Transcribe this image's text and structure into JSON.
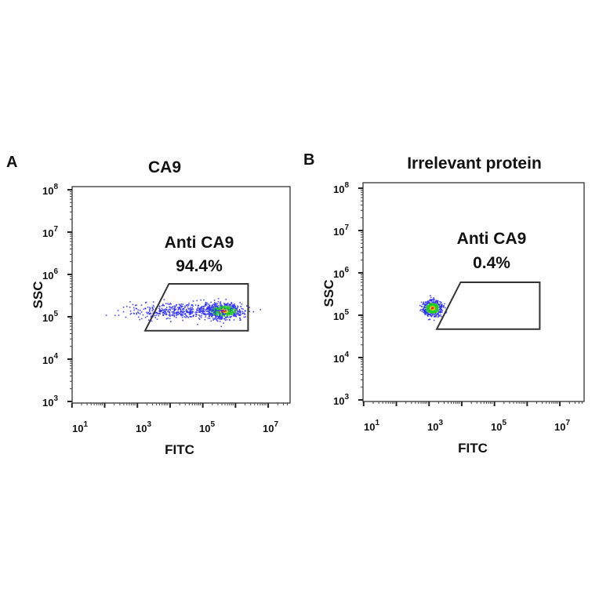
{
  "chart_data": [
    {
      "type": "scatter",
      "panel_label": "A",
      "title": "CA9",
      "xlabel": "FITC",
      "ylabel": "SSC",
      "x_scale": "log",
      "y_scale": "log",
      "xlim": [
        1,
        10000000
      ],
      "ylim": [
        1000,
        100000000
      ],
      "x_ticks": [
        {
          "base": "10",
          "exp": "1",
          "value": 10
        },
        {
          "base": "10",
          "exp": "3",
          "value": 1000
        },
        {
          "base": "10",
          "exp": "5",
          "value": 100000
        },
        {
          "base": "10",
          "exp": "7",
          "value": 10000000
        }
      ],
      "y_ticks": [
        {
          "base": "10",
          "exp": "3",
          "value": 1000
        },
        {
          "base": "10",
          "exp": "4",
          "value": 10000
        },
        {
          "base": "10",
          "exp": "5",
          "value": 100000
        },
        {
          "base": "10",
          "exp": "6",
          "value": 1000000
        },
        {
          "base": "10",
          "exp": "7",
          "value": 10000000
        },
        {
          "base": "10",
          "exp": "8",
          "value": 100000000
        }
      ],
      "gate": {
        "name": "Anti CA9",
        "percent": "94.4%",
        "vertices": [
          [
            800,
            47000
          ],
          [
            4500,
            600000
          ],
          [
            1400000,
            600000
          ],
          [
            1400000,
            47000
          ]
        ]
      },
      "populations": [
        {
          "x_log_center": 5.35,
          "x_log_sd": 0.3,
          "y_log_center": 5.15,
          "y_log_sd": 0.09,
          "events": 700
        },
        {
          "x_log_center": 4.0,
          "x_log_sd": 0.8,
          "y_log_center": 5.15,
          "y_log_sd": 0.09,
          "events": 450
        }
      ],
      "grid": false
    },
    {
      "type": "scatter",
      "panel_label": "B",
      "title": "Irrelevant protein",
      "xlabel": "FITC",
      "ylabel": "SSC",
      "x_scale": "log",
      "y_scale": "log",
      "xlim": [
        1,
        10000000
      ],
      "ylim": [
        1000,
        100000000
      ],
      "x_ticks": [
        {
          "base": "10",
          "exp": "1",
          "value": 10
        },
        {
          "base": "10",
          "exp": "3",
          "value": 1000
        },
        {
          "base": "10",
          "exp": "5",
          "value": 100000
        },
        {
          "base": "10",
          "exp": "7",
          "value": 10000000
        }
      ],
      "y_ticks": [
        {
          "base": "10",
          "exp": "3",
          "value": 1000
        },
        {
          "base": "10",
          "exp": "4",
          "value": 10000
        },
        {
          "base": "10",
          "exp": "5",
          "value": 100000
        },
        {
          "base": "10",
          "exp": "6",
          "value": 1000000
        },
        {
          "base": "10",
          "exp": "7",
          "value": 10000000
        },
        {
          "base": "10",
          "exp": "8",
          "value": 100000000
        }
      ],
      "gate": {
        "name": "Anti CA9",
        "percent": "0.4%",
        "vertices": [
          [
            800,
            47000
          ],
          [
            4500,
            600000
          ],
          [
            1400000,
            600000
          ],
          [
            1400000,
            47000
          ]
        ]
      },
      "populations": [
        {
          "x_log_center": 2.75,
          "x_log_sd": 0.15,
          "y_log_center": 5.18,
          "y_log_sd": 0.09,
          "events": 600
        }
      ],
      "grid": false
    }
  ],
  "density_colors": [
    "#2b2bff",
    "#3fbf4f",
    "#22cc22",
    "#e0d020",
    "#e03020"
  ]
}
